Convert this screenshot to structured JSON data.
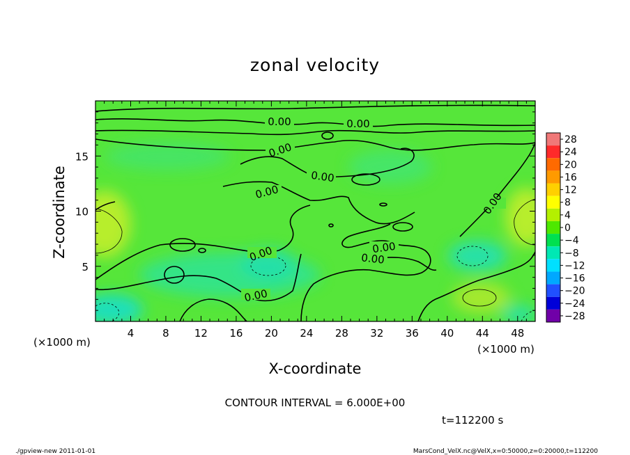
{
  "chart_data": {
    "type": "heatmap",
    "title": "zonal velocity",
    "xlabel": "X-coordinate",
    "ylabel": "Z-coordinate",
    "x_unit": "(×1000 m)",
    "y_unit": "(×1000 m)",
    "xlim": [
      0,
      50
    ],
    "ylim": [
      0,
      20
    ],
    "x_ticks": [
      4,
      8,
      12,
      16,
      20,
      24,
      28,
      32,
      36,
      40,
      44,
      48
    ],
    "y_ticks": [
      5,
      10,
      15
    ],
    "colorbar": {
      "levels": [
        28,
        24,
        20,
        16,
        12,
        8,
        4,
        0,
        -4,
        -8,
        -12,
        -16,
        -20,
        -24,
        -28
      ],
      "labels": [
        "28",
        "24",
        "20",
        "16",
        "12",
        "8",
        "4",
        "0",
        "−4",
        "−8",
        "−12",
        "−16",
        "−20",
        "−24",
        "−28"
      ],
      "colors": [
        "#f07878",
        "#ff2a2a",
        "#ff6a00",
        "#ff9a00",
        "#ffd000",
        "#ffff00",
        "#b4f000",
        "#4ee800",
        "#00e050",
        "#00e8b4",
        "#00e0ff",
        "#00a8ff",
        "#2050ff",
        "#0000d8",
        "#7000a8"
      ]
    },
    "contour_interval_text": "CONTOUR INTERVAL = 6.000E+00",
    "contour_labels": [
      "0.00",
      "0.00",
      "0.00",
      "0.00",
      "0.00",
      "0.00",
      "0.00",
      "0.00",
      "0.00",
      "0.00",
      "0.00"
    ],
    "time_text": "t=112200 s"
  },
  "footer": {
    "left": "./gpview-new   2011-01-01",
    "right": "MarsCond_VelX.nc@VelX,x=0:50000,z=0:20000,t=112200"
  }
}
